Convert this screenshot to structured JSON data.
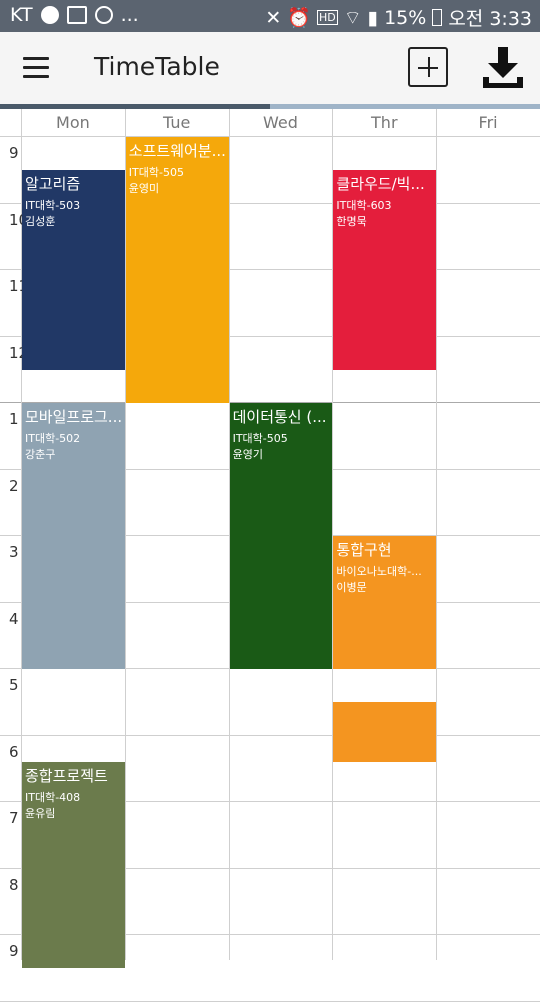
{
  "status_bar": {
    "carrier": "KT",
    "dots": "...",
    "battery": "15%",
    "time": "오전 3:33"
  },
  "app": {
    "title": "TimeTable"
  },
  "icons": [
    "menu-icon",
    "add-icon",
    "download-icon"
  ],
  "days": [
    "Mon",
    "Tue",
    "Wed",
    "Thr",
    "Fri"
  ],
  "hours": [
    "9",
    "10",
    "11",
    "12",
    "1",
    "2",
    "3",
    "4",
    "5",
    "6",
    "7",
    "8",
    "9"
  ],
  "courses": [
    {
      "title": "알고리즘",
      "room": "IT대학-503",
      "prof": "김성훈",
      "day": "Mon",
      "start": 9.5,
      "end": 12.5,
      "color": "#213866"
    },
    {
      "title": "소프트웨어분...",
      "room": "IT대학-505",
      "prof": "윤영미",
      "day": "Tue",
      "start": 9.0,
      "end": 13.0,
      "color": "#f5a80b"
    },
    {
      "title": "클라우드/빅...",
      "room": "IT대학-603",
      "prof": "한명묵",
      "day": "Thr",
      "start": 9.5,
      "end": 12.5,
      "color": "#e41e3c"
    },
    {
      "title": "모바일프로그...",
      "room": "IT대학-502",
      "prof": "강춘구",
      "day": "Mon",
      "start": 13.0,
      "end": 17.0,
      "color": "#8fa3b2"
    },
    {
      "title": "데이터통신 (...",
      "room": "IT대학-505",
      "prof": "윤영기",
      "day": "Wed",
      "start": 13.0,
      "end": 17.0,
      "color": "#1a5a16"
    },
    {
      "title": "통합구현",
      "room": "바이오나노대학-...",
      "prof": "이병문",
      "day": "Thr",
      "start": 15.0,
      "end": 17.0,
      "color": "#f49520"
    },
    {
      "title": "",
      "room": "",
      "prof": "",
      "day": "Thr",
      "start": 17.5,
      "end": 18.4,
      "color": "#f49520"
    },
    {
      "title": "종합프로젝트",
      "room": "IT대학-408",
      "prof": "윤유림",
      "day": "Mon",
      "start": 18.4,
      "end": 21.5,
      "color": "#6b7b4c"
    }
  ]
}
